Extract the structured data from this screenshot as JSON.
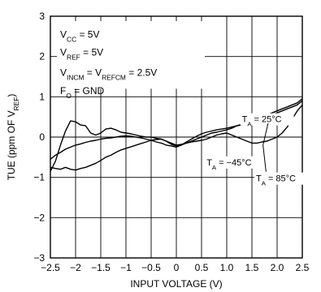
{
  "chart_data": {
    "type": "line",
    "title": "",
    "xlabel": "INPUT VOLTAGE (V)",
    "ylabel_parts": {
      "main": "TUE (ppm OF V",
      "sub": "REF",
      "end": ")"
    },
    "xlim": [
      -2.5,
      2.5
    ],
    "ylim": [
      -3,
      3
    ],
    "x_ticks": [
      "−2.5",
      "−2",
      "−1.5",
      "−1",
      "−0.5",
      "0",
      "0.5",
      "1.0",
      "1.5",
      "2.0",
      "2.5"
    ],
    "y_ticks": [
      "−3",
      "−2",
      "−1",
      "0",
      "1",
      "2",
      "3"
    ],
    "grid": true,
    "conditions": [
      {
        "main": "V",
        "sub": "CC",
        "rest": " = 5V"
      },
      {
        "main": "V",
        "sub": "REF",
        "rest": " = 5V"
      },
      {
        "main": "V",
        "sub": "INCM",
        "rest": " = V",
        "sub2": "REFCM",
        "rest2": " = 2.5V"
      },
      {
        "main": "F",
        "sub": "O",
        "rest": " = GND"
      }
    ],
    "series": [
      {
        "name_parts": {
          "main": "T",
          "sub": "A",
          "rest": " = 25°C"
        },
        "x": [
          -2.5,
          -2.4,
          -2.3,
          -2.2,
          -2.1,
          -2.0,
          -1.9,
          -1.8,
          -1.7,
          -1.6,
          -1.5,
          -1.4,
          -1.3,
          -1.2,
          -1.1,
          -1.0,
          -0.9,
          -0.8,
          -0.7,
          -0.6,
          -0.5,
          -0.4,
          -0.3,
          -0.2,
          -0.1,
          0.0,
          0.1,
          0.2,
          0.3,
          0.4,
          0.5,
          0.6,
          0.7,
          0.8,
          0.9,
          1.0,
          1.1,
          1.2,
          1.3,
          1.4,
          1.5,
          1.6,
          1.7,
          1.8,
          1.9,
          2.0,
          2.1,
          2.2,
          2.3,
          2.4,
          2.5
        ],
        "y": [
          -0.55,
          -0.45,
          -0.38,
          -0.3,
          -0.25,
          -0.2,
          -0.17,
          -0.13,
          -0.1,
          -0.08,
          -0.05,
          -0.03,
          -0.02,
          0.0,
          0.02,
          0.03,
          0.02,
          0.0,
          -0.02,
          -0.05,
          -0.08,
          -0.12,
          -0.15,
          -0.2,
          -0.22,
          -0.25,
          -0.2,
          -0.12,
          -0.05,
          0.02,
          0.08,
          0.12,
          0.15,
          0.18,
          0.2,
          0.22,
          0.25,
          0.28,
          0.3,
          0.35,
          0.38,
          0.42,
          0.45,
          0.5,
          0.55,
          0.6,
          0.65,
          0.7,
          0.75,
          0.8,
          0.9
        ]
      },
      {
        "name_parts": {
          "main": "T",
          "sub": "A",
          "rest": " = −45°C"
        },
        "x": [
          -2.5,
          -2.4,
          -2.3,
          -2.2,
          -2.1,
          -2.0,
          -1.9,
          -1.8,
          -1.7,
          -1.6,
          -1.5,
          -1.4,
          -1.3,
          -1.2,
          -1.1,
          -1.0,
          -0.9,
          -0.8,
          -0.7,
          -0.6,
          -0.5,
          -0.4,
          -0.3,
          -0.2,
          -0.1,
          0.0,
          0.1,
          0.2,
          0.3,
          0.4,
          0.5,
          0.6,
          0.7,
          0.8,
          0.9,
          1.0,
          1.1,
          1.2,
          1.3,
          1.4,
          1.5,
          1.6,
          1.7,
          1.8,
          1.9,
          2.0,
          2.1,
          2.2,
          2.3,
          2.4,
          2.5
        ],
        "y": [
          -0.85,
          -0.6,
          -0.2,
          0.15,
          0.4,
          0.38,
          0.3,
          0.28,
          0.1,
          0.05,
          0.1,
          0.2,
          0.22,
          0.18,
          0.12,
          0.1,
          0.08,
          0.05,
          0.02,
          0.0,
          0.0,
          -0.03,
          -0.05,
          -0.1,
          -0.15,
          -0.2,
          -0.18,
          -0.15,
          -0.12,
          -0.1,
          -0.08,
          -0.05,
          0.0,
          0.05,
          0.08,
          0.1,
          0.05,
          0.0,
          -0.05,
          -0.1,
          -0.15,
          -0.15,
          -0.12,
          -0.1,
          -0.05,
          0.0,
          0.1,
          0.25,
          0.45,
          0.65,
          0.8
        ]
      },
      {
        "name_parts": {
          "main": "T",
          "sub": "A",
          "rest": " = 85°C"
        },
        "x": [
          -2.5,
          -2.4,
          -2.3,
          -2.2,
          -2.1,
          -2.0,
          -1.9,
          -1.8,
          -1.7,
          -1.6,
          -1.5,
          -1.4,
          -1.3,
          -1.2,
          -1.1,
          -1.0,
          -0.9,
          -0.8,
          -0.7,
          -0.6,
          -0.5,
          -0.4,
          -0.3,
          -0.2,
          -0.1,
          0.0,
          0.1,
          0.2,
          0.3,
          0.4,
          0.5,
          0.6,
          0.7,
          0.8,
          0.9,
          1.0,
          1.1,
          1.2,
          1.3,
          1.4,
          1.5,
          1.6,
          1.7,
          1.8,
          1.9,
          2.0,
          2.1,
          2.2,
          2.3,
          2.4,
          2.5
        ],
        "y": [
          -0.75,
          -0.78,
          -0.8,
          -0.75,
          -0.8,
          -0.82,
          -0.78,
          -0.75,
          -0.7,
          -0.65,
          -0.58,
          -0.5,
          -0.45,
          -0.38,
          -0.32,
          -0.28,
          -0.24,
          -0.2,
          -0.16,
          -0.12,
          -0.08,
          -0.06,
          -0.05,
          -0.1,
          -0.18,
          -0.22,
          -0.2,
          -0.15,
          -0.1,
          -0.05,
          0.0,
          0.05,
          0.1,
          0.12,
          0.15,
          0.18,
          0.22,
          0.28,
          0.32,
          0.36,
          0.4,
          0.45,
          0.5,
          0.55,
          0.6,
          0.65,
          0.7,
          0.75,
          0.8,
          0.85,
          0.95
        ]
      }
    ]
  }
}
